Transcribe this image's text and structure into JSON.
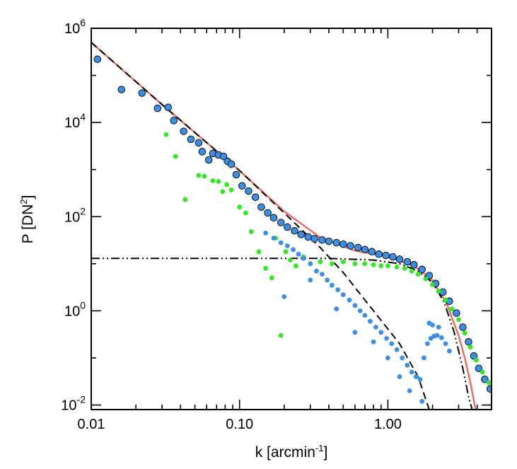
{
  "chart_data": {
    "type": "scatter",
    "title": "",
    "xlabel": "k [arcmin",
    "xlabel_sup": "-1",
    "xlabel_end": "]",
    "ylabel": "P [DN",
    "ylabel_sup": "2",
    "ylabel_end": "]",
    "x_scale": "log",
    "y_scale": "log",
    "xlim": [
      0.01,
      5.0
    ],
    "ylim": [
      0.008,
      1000000
    ],
    "grid": false,
    "legend": "none",
    "x_ticks": [
      {
        "value": 0.01,
        "label": "0.01"
      },
      {
        "value": 0.1,
        "label": "0.10"
      },
      {
        "value": 1.0,
        "label": "1.00"
      }
    ],
    "y_ticks": [
      {
        "value": 0.01,
        "base": "10",
        "exp": "-2"
      },
      {
        "value": 1,
        "base": "10",
        "exp": "0"
      },
      {
        "value": 100,
        "base": "10",
        "exp": "2"
      },
      {
        "value": 10000,
        "base": "10",
        "exp": "4"
      },
      {
        "value": 1000000,
        "base": "10",
        "exp": "6"
      }
    ],
    "colors": {
      "total": "#000000",
      "sample": "#3a8fe6",
      "noise": "#2eea1f",
      "fit": "#f06a5a",
      "model": "#000000"
    },
    "series": [
      {
        "kind": "scatter-outlined",
        "color": "#3a8fe6",
        "points": [
          [
            0.011,
            220000
          ],
          [
            0.016,
            50000
          ],
          [
            0.022,
            42000
          ],
          [
            0.028,
            20000
          ],
          [
            0.033,
            21000
          ],
          [
            0.036,
            11000
          ],
          [
            0.042,
            6500
          ],
          [
            0.047,
            4400
          ],
          [
            0.053,
            3700
          ],
          [
            0.056,
            2400
          ],
          [
            0.062,
            1600
          ],
          [
            0.066,
            2200
          ],
          [
            0.072,
            2050
          ],
          [
            0.078,
            1900
          ],
          [
            0.083,
            1500
          ],
          [
            0.088,
            1300
          ],
          [
            0.095,
            780
          ],
          [
            0.104,
            450
          ],
          [
            0.115,
            350
          ],
          [
            0.128,
            260
          ],
          [
            0.14,
            160
          ],
          [
            0.155,
            120
          ],
          [
            0.17,
            95
          ],
          [
            0.19,
            75
          ],
          [
            0.21,
            60
          ],
          [
            0.235,
            50
          ],
          [
            0.26,
            42
          ],
          [
            0.29,
            37
          ],
          [
            0.32,
            34
          ],
          [
            0.36,
            32
          ],
          [
            0.4,
            30
          ],
          [
            0.45,
            28
          ],
          [
            0.5,
            26
          ],
          [
            0.56,
            24
          ],
          [
            0.63,
            22
          ],
          [
            0.7,
            20
          ],
          [
            0.78,
            18
          ],
          [
            0.87,
            16
          ],
          [
            0.97,
            15
          ],
          [
            1.08,
            14
          ],
          [
            1.2,
            12.5
          ],
          [
            1.35,
            11
          ],
          [
            1.5,
            9.5
          ],
          [
            1.7,
            7.6
          ],
          [
            1.9,
            5.6
          ],
          [
            2.1,
            3.8
          ],
          [
            2.35,
            2.5
          ],
          [
            2.6,
            1.6
          ],
          [
            2.9,
            0.9
          ],
          [
            3.2,
            0.45
          ],
          [
            3.5,
            0.22
          ],
          [
            3.8,
            0.11
          ],
          [
            4.1,
            0.06
          ],
          [
            4.5,
            0.035
          ],
          [
            4.9,
            0.022
          ]
        ]
      },
      {
        "kind": "scatter",
        "color": "#2eea1f",
        "points": [
          [
            0.032,
            5500
          ],
          [
            0.037,
            1900
          ],
          [
            0.043,
            230
          ],
          [
            0.053,
            750
          ],
          [
            0.058,
            720
          ],
          [
            0.066,
            580
          ],
          [
            0.072,
            560
          ],
          [
            0.077,
            340
          ],
          [
            0.082,
            480
          ],
          [
            0.088,
            370
          ],
          [
            0.1,
            160
          ],
          [
            0.11,
            120
          ],
          [
            0.12,
            48
          ],
          [
            0.135,
            18
          ],
          [
            0.15,
            8
          ],
          [
            0.165,
            5
          ],
          [
            0.175,
            35
          ],
          [
            0.19,
            0.3
          ],
          [
            0.205,
            18
          ],
          [
            0.22,
            12
          ],
          [
            0.24,
            9
          ],
          [
            0.27,
            14
          ],
          [
            0.3,
            10
          ],
          [
            0.35,
            11
          ],
          [
            0.42,
            10
          ],
          [
            0.5,
            11
          ],
          [
            0.6,
            10
          ],
          [
            0.7,
            10
          ],
          [
            0.8,
            9.5
          ],
          [
            0.9,
            9
          ],
          [
            1.0,
            9
          ],
          [
            1.15,
            8.5
          ],
          [
            1.3,
            8
          ],
          [
            1.45,
            7
          ],
          [
            1.6,
            6
          ],
          [
            1.8,
            4.8
          ],
          [
            2.0,
            3.6
          ],
          [
            2.2,
            2.6
          ],
          [
            2.45,
            1.7
          ],
          [
            2.7,
            1.1
          ],
          [
            3.0,
            0.65
          ],
          [
            3.3,
            0.34
          ],
          [
            3.6,
            0.17
          ],
          [
            3.95,
            0.09
          ],
          [
            4.35,
            0.05
          ],
          [
            4.8,
            0.03
          ]
        ]
      },
      {
        "kind": "scatter",
        "color": "#3a8fe6",
        "points": [
          [
            0.15,
            45
          ],
          [
            0.17,
            35
          ],
          [
            0.19,
            28
          ],
          [
            0.21,
            24
          ],
          [
            0.23,
            20
          ],
          [
            0.25,
            16
          ],
          [
            0.27,
            13
          ],
          [
            0.3,
            10
          ],
          [
            0.33,
            7
          ],
          [
            0.36,
            6
          ],
          [
            0.39,
            4.5
          ],
          [
            0.42,
            3.5
          ],
          [
            0.46,
            2.8
          ],
          [
            0.5,
            2.2
          ],
          [
            0.55,
            1.7
          ],
          [
            0.6,
            1.3
          ],
          [
            0.65,
            1.0
          ],
          [
            0.7,
            0.8
          ],
          [
            0.76,
            0.6
          ],
          [
            0.83,
            0.45
          ],
          [
            0.9,
            0.35
          ],
          [
            0.98,
            0.26
          ],
          [
            1.06,
            0.2
          ],
          [
            1.15,
            0.15
          ],
          [
            1.25,
            0.1
          ],
          [
            1.35,
            0.07
          ],
          [
            1.45,
            0.05
          ],
          [
            1.55,
            0.04
          ],
          [
            1.65,
            0.035
          ],
          [
            1.75,
            0.1
          ],
          [
            1.85,
            0.2
          ],
          [
            1.95,
            0.26
          ],
          [
            2.05,
            0.29
          ],
          [
            2.15,
            0.3
          ],
          [
            2.3,
            0.27
          ],
          [
            2.45,
            0.2
          ],
          [
            2.6,
            0.14
          ],
          [
            0.2,
            2.0
          ],
          [
            0.3,
            4.5
          ],
          [
            0.45,
            1.1
          ],
          [
            0.6,
            0.35
          ],
          [
            0.8,
            0.22
          ],
          [
            1.0,
            0.1
          ],
          [
            1.2,
            0.04
          ],
          [
            1.4,
            0.02
          ],
          [
            1.7,
            0.012
          ],
          [
            2.0,
            0.5
          ],
          [
            1.9,
            0.55
          ],
          [
            2.2,
            0.45
          ]
        ]
      }
    ],
    "lines": [
      {
        "name": "",
        "style": "solid",
        "color": "#f06a5a",
        "points": [
          [
            0.01,
            500000
          ],
          [
            0.03,
            24000
          ],
          [
            0.1,
            950
          ],
          [
            0.2,
            130
          ],
          [
            0.35,
            36
          ],
          [
            0.6,
            19
          ],
          [
            1.0,
            14
          ],
          [
            1.5,
            9
          ],
          [
            2.0,
            4.5
          ],
          [
            2.5,
            1.4
          ],
          [
            3.0,
            0.3
          ],
          [
            3.3,
            0.1
          ],
          [
            3.6,
            0.03
          ],
          [
            3.9,
            0.008
          ]
        ]
      },
      {
        "name": "",
        "style": "dashed",
        "color": "#000000",
        "points": [
          [
            0.01,
            500000
          ],
          [
            0.03,
            24000
          ],
          [
            0.1,
            950
          ],
          [
            0.2,
            120
          ],
          [
            0.35,
            22
          ],
          [
            0.5,
            6.5
          ],
          [
            0.8,
            1.0
          ],
          [
            1.2,
            0.2
          ],
          [
            1.6,
            0.04
          ],
          [
            1.9,
            0.008
          ]
        ]
      },
      {
        "name": "",
        "style": "dash-dot-dot",
        "color": "#000000",
        "points": [
          [
            0.01,
            13
          ],
          [
            0.1,
            13
          ],
          [
            0.4,
            13
          ],
          [
            0.8,
            12
          ],
          [
            1.2,
            10
          ],
          [
            1.6,
            7
          ],
          [
            2.0,
            4
          ],
          [
            2.4,
            1.5
          ],
          [
            2.8,
            0.35
          ],
          [
            3.2,
            0.06
          ],
          [
            3.5,
            0.015
          ],
          [
            3.7,
            0.008
          ]
        ]
      }
    ]
  }
}
